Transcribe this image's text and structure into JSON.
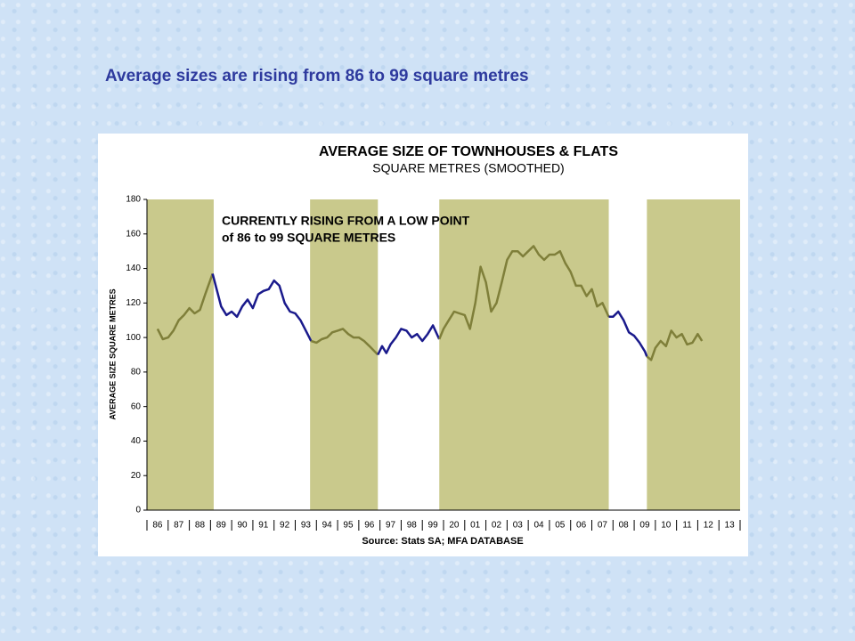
{
  "heading": "Average sizes are rising from 86 to 99 square metres",
  "chart_data": {
    "type": "line",
    "title": "AVERAGE SIZE OF TOWNHOUSES & FLATS",
    "subtitle": "SQUARE METRES (SMOOTHED)",
    "ylabel": "AVERAGE SIZE SQUARE METRES",
    "annotation": [
      "CURRENTLY RISING FROM A LOW POINT",
      "of 86 to 99 SQUARE METRES"
    ],
    "source": "Source: Stats SA; MFA DATABASE",
    "xlim": [
      1986,
      2014
    ],
    "ylim": [
      0,
      180
    ],
    "yticks": [
      0,
      20,
      40,
      60,
      80,
      100,
      120,
      140,
      160,
      180
    ],
    "xticks": [
      {
        "value": 1986.5,
        "label": "86"
      },
      {
        "value": 1987.5,
        "label": "87"
      },
      {
        "value": 1988.5,
        "label": "88"
      },
      {
        "value": 1989.5,
        "label": "89"
      },
      {
        "value": 1990.5,
        "label": "90"
      },
      {
        "value": 1991.5,
        "label": "91"
      },
      {
        "value": 1992.5,
        "label": "92"
      },
      {
        "value": 1993.5,
        "label": "93"
      },
      {
        "value": 1994.5,
        "label": "94"
      },
      {
        "value": 1995.5,
        "label": "95"
      },
      {
        "value": 1996.5,
        "label": "96"
      },
      {
        "value": 1997.5,
        "label": "97"
      },
      {
        "value": 1998.5,
        "label": "98"
      },
      {
        "value": 1999.5,
        "label": "99"
      },
      {
        "value": 2000.5,
        "label": "20"
      },
      {
        "value": 2001.5,
        "label": "01"
      },
      {
        "value": 2002.5,
        "label": "02"
      },
      {
        "value": 2003.5,
        "label": "03"
      },
      {
        "value": 2004.5,
        "label": "04"
      },
      {
        "value": 2005.5,
        "label": "05"
      },
      {
        "value": 2006.5,
        "label": "06"
      },
      {
        "value": 2007.5,
        "label": "07"
      },
      {
        "value": 2008.5,
        "label": "08"
      },
      {
        "value": 2009.5,
        "label": "09"
      },
      {
        "value": 2010.5,
        "label": "10"
      },
      {
        "value": 2011.5,
        "label": "11"
      },
      {
        "value": 2012.5,
        "label": "12"
      },
      {
        "value": 2013.5,
        "label": "13"
      }
    ],
    "bands": [
      [
        1986,
        1989.15
      ],
      [
        1993.7,
        1996.9
      ],
      [
        1999.8,
        2007.8
      ],
      [
        2009.6,
        2014
      ]
    ],
    "band_color": "#c9c98c",
    "series": [
      {
        "color": "#7f7f3a",
        "x": [
          1986.5,
          1986.75,
          1987,
          1987.25,
          1987.5,
          1987.75,
          1988,
          1988.25,
          1988.5,
          1988.75,
          1989.1
        ],
        "values": [
          105,
          99,
          100,
          104,
          110,
          113,
          117,
          114,
          116,
          125,
          137
        ]
      },
      {
        "color": "#1a1a8c",
        "x": [
          1989.1,
          1989.5,
          1989.75,
          1990,
          1990.25,
          1990.5,
          1990.75,
          1991,
          1991.25,
          1991.5,
          1991.75,
          1992,
          1992.25,
          1992.5,
          1992.75,
          1993,
          1993.25,
          1993.5,
          1993.75
        ],
        "values": [
          137,
          118,
          113,
          115,
          112,
          118,
          122,
          117,
          125,
          127,
          128,
          133,
          130,
          120,
          115,
          114,
          110,
          104,
          98
        ]
      },
      {
        "color": "#7f7f3a",
        "x": [
          1993.75,
          1994,
          1994.25,
          1994.5,
          1994.75,
          1995,
          1995.25,
          1995.5,
          1995.75,
          1996,
          1996.25,
          1996.5,
          1996.9
        ],
        "values": [
          98,
          97,
          99,
          100,
          103,
          104,
          105,
          102,
          100,
          100,
          98,
          95,
          90
        ]
      },
      {
        "color": "#1a1a8c",
        "x": [
          1996.9,
          1997.1,
          1997.3,
          1997.5,
          1997.75,
          1998,
          1998.25,
          1998.5,
          1998.75,
          1999,
          1999.25,
          1999.5,
          1999.8
        ],
        "values": [
          90,
          95,
          91,
          96,
          100,
          105,
          104,
          100,
          102,
          98,
          102,
          107,
          99
        ]
      },
      {
        "color": "#7f7f3a",
        "x": [
          1999.8,
          2000,
          2000.25,
          2000.5,
          2000.75,
          2001,
          2001.25,
          2001.5,
          2001.75,
          2002,
          2002.25,
          2002.5,
          2002.75,
          2003,
          2003.25,
          2003.5,
          2003.75,
          2004,
          2004.25,
          2004.5,
          2004.75,
          2005,
          2005.25,
          2005.5,
          2005.75,
          2006,
          2006.25,
          2006.5,
          2006.75,
          2007,
          2007.25,
          2007.5,
          2007.8
        ],
        "values": [
          99,
          105,
          110,
          115,
          114,
          113,
          105,
          120,
          141,
          132,
          115,
          120,
          132,
          145,
          150,
          150,
          147,
          150,
          153,
          148,
          145,
          148,
          148,
          150,
          143,
          138,
          130,
          130,
          124,
          128,
          118,
          120,
          112
        ]
      },
      {
        "color": "#1a1a8c",
        "x": [
          2007.8,
          2008,
          2008.25,
          2008.5,
          2008.75,
          2009,
          2009.25,
          2009.5,
          2009.6
        ],
        "values": [
          112,
          112,
          115,
          110,
          103,
          101,
          97,
          92,
          89
        ]
      },
      {
        "color": "#7f7f3a",
        "x": [
          2009.6,
          2009.8,
          2010,
          2010.25,
          2010.5,
          2010.75,
          2011,
          2011.25,
          2011.5,
          2011.75,
          2012,
          2012.2
        ],
        "values": [
          89,
          87,
          94,
          98,
          95,
          104,
          100,
          102,
          96,
          97,
          102,
          98
        ]
      }
    ]
  }
}
